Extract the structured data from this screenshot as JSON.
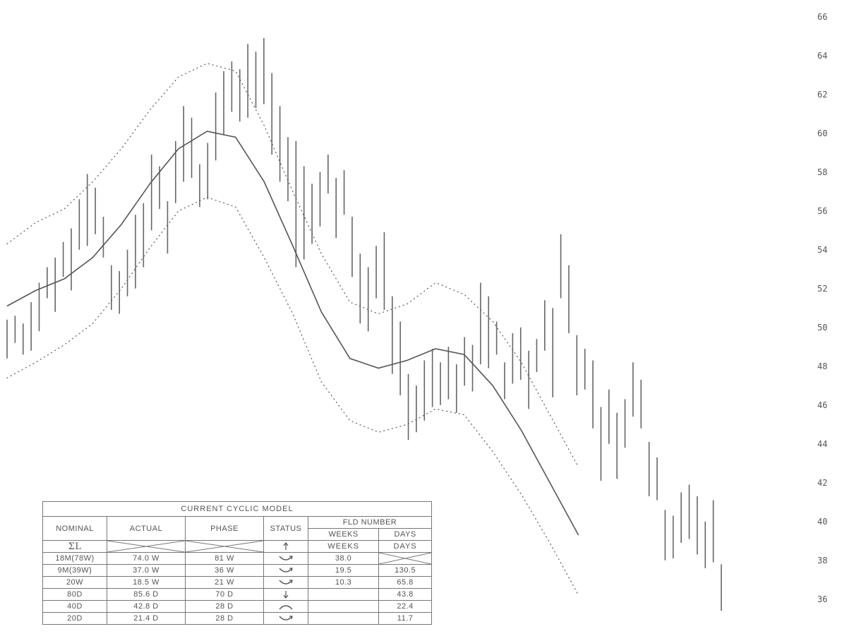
{
  "chart_data": {
    "type": "line",
    "title": "",
    "xlabel": "",
    "ylabel": "",
    "ylim": [
      34.5,
      66.5
    ],
    "yticks": [
      "66",
      "64",
      "62",
      "60",
      "58",
      "56",
      "54",
      "52",
      "50",
      "48",
      "46",
      "44",
      "42",
      "40",
      "38",
      "36"
    ],
    "ytick_values": [
      66,
      64,
      62,
      60,
      58,
      56,
      54,
      52,
      50,
      48,
      46,
      44,
      42,
      40,
      38,
      36
    ],
    "x": [
      0,
      4,
      8,
      12,
      16,
      20,
      24,
      28,
      32,
      36,
      40,
      44,
      48,
      52,
      56,
      60,
      64,
      68,
      72,
      76,
      80,
      84,
      88,
      92,
      96,
      100
    ],
    "series": [
      {
        "style": "solid",
        "values": [
          51.1,
          51.9,
          52.5,
          53.6,
          55.3,
          57.4,
          59.2,
          60.1,
          59.8,
          57.5,
          54.2,
          50.8,
          48.4,
          47.9,
          48.3,
          48.9,
          48.6,
          47.0,
          44.7,
          42.0,
          39.3,
          null,
          null,
          null,
          null,
          null
        ]
      },
      {
        "style": "dotted",
        "values": [
          54.3,
          55.4,
          56.1,
          57.5,
          59.2,
          61.2,
          62.9,
          63.6,
          63.2,
          60.4,
          57.0,
          53.8,
          51.3,
          50.7,
          51.2,
          52.3,
          51.7,
          50.3,
          48.2,
          45.5,
          42.8,
          null,
          null,
          null,
          null,
          null
        ]
      },
      {
        "style": "dotted",
        "values": [
          47.4,
          48.2,
          49.1,
          50.2,
          52.0,
          54.1,
          56.0,
          56.7,
          56.2,
          53.6,
          50.7,
          47.2,
          45.2,
          44.6,
          45.0,
          45.8,
          45.5,
          43.6,
          41.4,
          38.9,
          36.2,
          null,
          null,
          null,
          null,
          null
        ]
      }
    ],
    "bars": [
      [
        50.4,
        48.4
      ],
      [
        50.6,
        49.2
      ],
      [
        50.2,
        48.6
      ],
      [
        51.3,
        48.8
      ],
      [
        52.3,
        49.8
      ],
      [
        53.1,
        51.5
      ],
      [
        53.6,
        50.8
      ],
      [
        54.4,
        52.6
      ],
      [
        55.1,
        51.9
      ],
      [
        56.6,
        54.0
      ],
      [
        57.9,
        54.2
      ],
      [
        57.2,
        54.8
      ],
      [
        55.7,
        53.6
      ],
      [
        53.2,
        50.9
      ],
      [
        52.9,
        50.7
      ],
      [
        54.0,
        51.6
      ],
      [
        55.8,
        52.0
      ],
      [
        56.4,
        53.1
      ],
      [
        58.9,
        55.0
      ],
      [
        58.3,
        56.1
      ],
      [
        56.5,
        53.8
      ],
      [
        59.6,
        56.4
      ],
      [
        61.4,
        57.5
      ],
      [
        60.8,
        57.7
      ],
      [
        58.4,
        56.2
      ],
      [
        59.5,
        56.6
      ],
      [
        62.1,
        58.6
      ],
      [
        63.2,
        59.9
      ],
      [
        63.7,
        61.1
      ],
      [
        63.3,
        60.6
      ],
      [
        64.6,
        60.8
      ],
      [
        64.2,
        61.3
      ],
      [
        64.9,
        61.5
      ],
      [
        63.1,
        58.9
      ],
      [
        61.4,
        57.5
      ],
      [
        59.8,
        56.5
      ],
      [
        59.6,
        53.1
      ],
      [
        58.3,
        53.5
      ],
      [
        57.4,
        54.3
      ],
      [
        58.0,
        55.2
      ],
      [
        58.9,
        56.9
      ],
      [
        57.7,
        54.6
      ],
      [
        58.1,
        55.8
      ],
      [
        55.7,
        52.6
      ],
      [
        53.8,
        50.2
      ],
      [
        53.1,
        49.8
      ],
      [
        54.2,
        51.5
      ],
      [
        54.9,
        50.9
      ],
      [
        51.6,
        47.6
      ],
      [
        50.3,
        46.5
      ],
      [
        47.6,
        44.2
      ],
      [
        47.0,
        44.6
      ],
      [
        48.3,
        45.2
      ],
      [
        48.9,
        45.9
      ],
      [
        48.2,
        46.0
      ],
      [
        49.0,
        46.3
      ],
      [
        48.1,
        45.6
      ],
      [
        49.5,
        47.0
      ],
      [
        49.1,
        46.7
      ],
      [
        52.3,
        48.1
      ],
      [
        51.6,
        47.9
      ],
      [
        50.3,
        48.6
      ],
      [
        48.2,
        46.3
      ],
      [
        49.7,
        47.1
      ],
      [
        50.0,
        47.3
      ],
      [
        48.8,
        45.8
      ],
      [
        49.4,
        47.7
      ],
      [
        51.4,
        48.8
      ],
      [
        51.0,
        46.4
      ],
      [
        54.8,
        51.5
      ],
      [
        53.2,
        49.7
      ],
      [
        49.6,
        46.5
      ],
      [
        48.9,
        46.8
      ],
      [
        48.3,
        44.8
      ],
      [
        45.9,
        42.1
      ],
      [
        46.8,
        44.0
      ],
      [
        45.6,
        42.2
      ],
      [
        46.3,
        43.8
      ],
      [
        48.2,
        45.4
      ],
      [
        47.3,
        44.8
      ],
      [
        44.1,
        41.3
      ],
      [
        43.3,
        41.1
      ],
      [
        40.6,
        38.0
      ],
      [
        40.3,
        38.1
      ],
      [
        41.5,
        38.9
      ],
      [
        41.9,
        39.1
      ],
      [
        41.3,
        38.3
      ],
      [
        40.0,
        37.6
      ],
      [
        41.1,
        37.9
      ],
      [
        37.8,
        35.4
      ]
    ],
    "table": {
      "title": "CURRENT CYCLIC MODEL",
      "headers": [
        "NOMINAL",
        "ACTUAL",
        "PHASE",
        "STATUS",
        "FLD NUMBER"
      ],
      "subheaders": [
        "WEEKS",
        "DAYS"
      ],
      "sum_label": "ΣL",
      "rows": [
        {
          "nominal": "18M(78W)",
          "actual": "74.0 W",
          "phase": "81 W",
          "status": "trough",
          "weeks": "38.0",
          "days": ""
        },
        {
          "nominal": "9M(39W)",
          "actual": "37.0 W",
          "phase": "36 W",
          "status": "trough",
          "weeks": "19.5",
          "days": "130.5"
        },
        {
          "nominal": "20W",
          "actual": "18.5 W",
          "phase": "21 W",
          "status": "trough",
          "weeks": "10.3",
          "days": "65.8"
        },
        {
          "nominal": "80D",
          "actual": "85.6 D",
          "phase": "70 D",
          "status": "down",
          "weeks": "",
          "days": "43.8"
        },
        {
          "nominal": "40D",
          "actual": "42.8 D",
          "phase": "28 D",
          "status": "peak",
          "weeks": "",
          "days": "22.4"
        },
        {
          "nominal": "20D",
          "actual": "21.4 D",
          "phase": "28 D",
          "status": "trough",
          "weeks": "",
          "days": "11.7"
        }
      ]
    }
  }
}
